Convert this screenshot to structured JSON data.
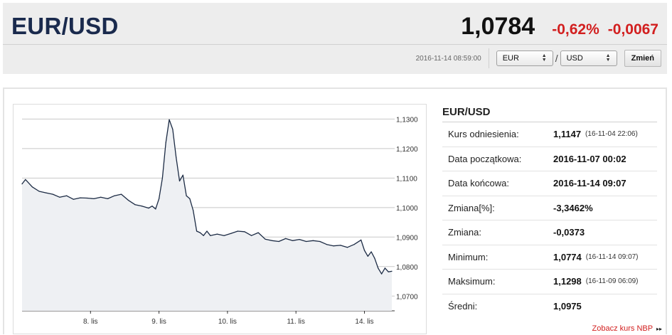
{
  "header": {
    "pair": "EUR/USD",
    "rate": "1,0784",
    "change_pct": "-0,62%",
    "change_abs": "-0,0067",
    "timestamp": "2016-11-14 08:59:00",
    "from_currency": "EUR",
    "slash": "/",
    "to_currency": "USD",
    "change_button": "Zmień"
  },
  "info": {
    "title": "EUR/USD",
    "rows": [
      {
        "label": "Kurs odniesienia:",
        "value": "1,1147",
        "note": "(16-11-04 22:06)"
      },
      {
        "label": "Data początkowa:",
        "value": "2016-11-07 00:02",
        "note": ""
      },
      {
        "label": "Data końcowa:",
        "value": "2016-11-14 09:07",
        "note": ""
      },
      {
        "label": "Zmiana[%]:",
        "value": "-3,3462%",
        "note": ""
      },
      {
        "label": "Zmiana:",
        "value": "-0,0373",
        "note": ""
      },
      {
        "label": "Minimum:",
        "value": "1,0774",
        "note": "(16-11-14 09:07)"
      },
      {
        "label": "Maksimum:",
        "value": "1,1298",
        "note": "(16-11-09 06:09)"
      },
      {
        "label": "Średni:",
        "value": "1,0975",
        "note": ""
      }
    ],
    "more_link": "Zobacz kurs NBP",
    "more_arrow": "▸▸"
  },
  "colors": {
    "negative": "#d21f1f",
    "title": "#1a2a4d",
    "line": "#1c2b44",
    "area": "#eef0f3"
  },
  "chart_data": {
    "type": "line",
    "title": "",
    "xlabel": "",
    "ylabel": "",
    "ylim": [
      1.065,
      1.1325
    ],
    "y_ticks": [
      1.07,
      1.08,
      1.09,
      1.1,
      1.11,
      1.12,
      1.13
    ],
    "y_tick_labels": [
      "1,0700",
      "1,0800",
      "1,0900",
      "1,1000",
      "1,1100",
      "1,1200",
      "1,1300"
    ],
    "x_ticks": [
      {
        "t": 1.0,
        "label": "8. lis"
      },
      {
        "t": 2.0,
        "label": "9. lis"
      },
      {
        "t": 3.0,
        "label": "10. lis"
      },
      {
        "t": 4.0,
        "label": "11. lis"
      },
      {
        "t": 5.0,
        "label": "14. lis"
      }
    ],
    "xlim": [
      0.0,
      5.4
    ],
    "grid": true,
    "series": [
      {
        "x": [
          0.0,
          0.05,
          0.15,
          0.25,
          0.35,
          0.45,
          0.55,
          0.65,
          0.75,
          0.85,
          0.95,
          1.05,
          1.15,
          1.25,
          1.35,
          1.45,
          1.55,
          1.65,
          1.75,
          1.85,
          1.9,
          1.95,
          2.0,
          2.05,
          2.1,
          2.15,
          2.2,
          2.25,
          2.3,
          2.35,
          2.4,
          2.45,
          2.5,
          2.55,
          2.6,
          2.65,
          2.7,
          2.75,
          2.85,
          2.95,
          3.05,
          3.15,
          3.25,
          3.35,
          3.45,
          3.55,
          3.65,
          3.75,
          3.85,
          3.95,
          4.05,
          4.15,
          4.25,
          4.35,
          4.45,
          4.55,
          4.65,
          4.75,
          4.85,
          4.95,
          5.0,
          5.05,
          5.1,
          5.15,
          5.2,
          5.25,
          5.3,
          5.35,
          5.4
        ],
        "y": [
          1.108,
          1.1095,
          1.107,
          1.1055,
          1.105,
          1.1045,
          1.1035,
          1.104,
          1.1028,
          1.1033,
          1.1032,
          1.103,
          1.1035,
          1.103,
          1.104,
          1.1045,
          1.1025,
          1.101,
          1.1005,
          1.0998,
          1.1005,
          1.0995,
          1.103,
          1.11,
          1.122,
          1.1298,
          1.1265,
          1.117,
          1.109,
          1.111,
          1.104,
          1.103,
          1.099,
          1.092,
          1.0915,
          1.0905,
          1.092,
          1.0905,
          1.091,
          1.0905,
          1.0912,
          1.092,
          1.0918,
          1.0905,
          1.0915,
          1.0893,
          1.0888,
          1.0885,
          1.0895,
          1.0888,
          1.0892,
          1.0885,
          1.0888,
          1.0885,
          1.0875,
          1.087,
          1.0872,
          1.0865,
          1.0875,
          1.089,
          1.0855,
          1.0835,
          1.085,
          1.0828,
          1.0795,
          1.0775,
          1.0795,
          1.0782,
          1.0784
        ]
      }
    ]
  }
}
